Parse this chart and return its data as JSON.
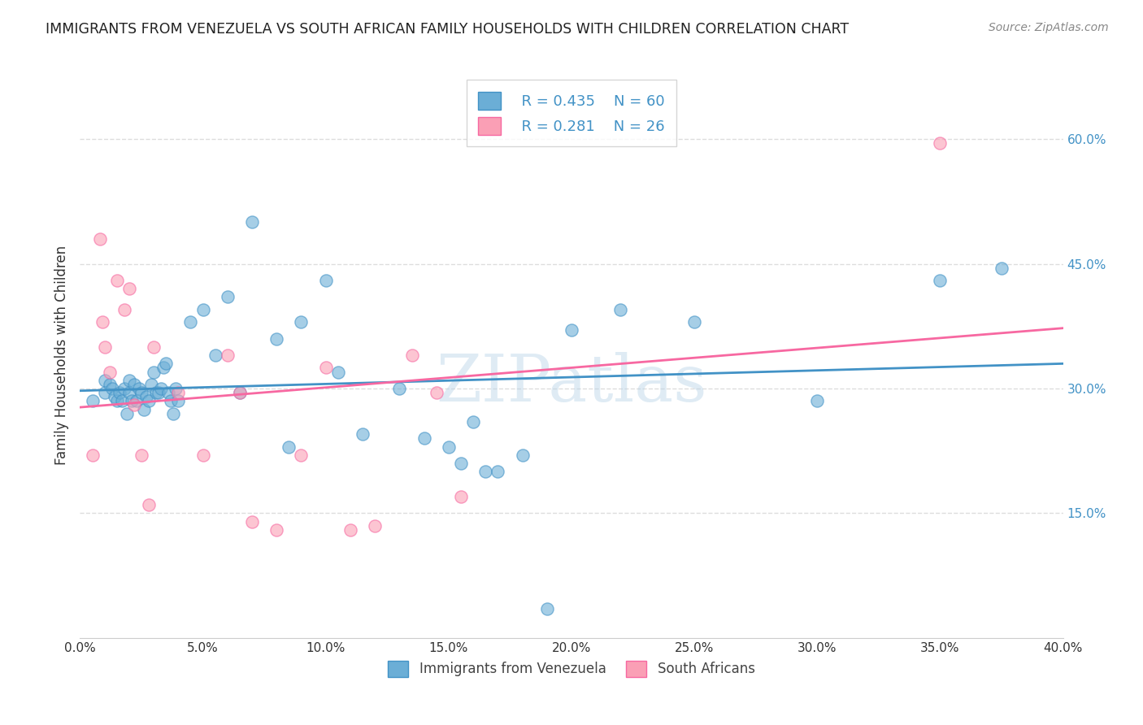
{
  "title": "IMMIGRANTS FROM VENEZUELA VS SOUTH AFRICAN FAMILY HOUSEHOLDS WITH CHILDREN CORRELATION CHART",
  "source": "Source: ZipAtlas.com",
  "xlabel": "",
  "ylabel": "Family Households with Children",
  "xlim": [
    0.0,
    0.4
  ],
  "ylim": [
    0.0,
    0.68
  ],
  "xticks": [
    0.0,
    0.05,
    0.1,
    0.15,
    0.2,
    0.25,
    0.3,
    0.35,
    0.4
  ],
  "yticks": [
    0.15,
    0.3,
    0.45,
    0.6
  ],
  "ytick_labels": [
    "15.0%",
    "30.0%",
    "45.0%",
    "60.0%"
  ],
  "xtick_labels": [
    "0.0%",
    "",
    "",
    "",
    "",
    "",
    "",
    "",
    "40.0%"
  ],
  "legend_R1": "R = 0.435",
  "legend_N1": "N = 60",
  "legend_R2": "R = 0.281",
  "legend_N2": "N = 26",
  "blue_color": "#6baed6",
  "pink_color": "#fa9fb5",
  "line_blue": "#4292c6",
  "line_pink": "#f768a1",
  "blue_scatter_x": [
    0.005,
    0.01,
    0.01,
    0.012,
    0.013,
    0.014,
    0.015,
    0.016,
    0.017,
    0.018,
    0.019,
    0.02,
    0.02,
    0.021,
    0.022,
    0.023,
    0.024,
    0.025,
    0.026,
    0.027,
    0.028,
    0.029,
    0.03,
    0.031,
    0.032,
    0.033,
    0.034,
    0.035,
    0.036,
    0.037,
    0.038,
    0.039,
    0.04,
    0.045,
    0.05,
    0.055,
    0.06,
    0.065,
    0.07,
    0.08,
    0.085,
    0.09,
    0.1,
    0.105,
    0.115,
    0.13,
    0.14,
    0.15,
    0.155,
    0.16,
    0.165,
    0.17,
    0.18,
    0.19,
    0.2,
    0.22,
    0.25,
    0.3,
    0.35,
    0.375
  ],
  "blue_scatter_y": [
    0.285,
    0.31,
    0.295,
    0.305,
    0.3,
    0.29,
    0.285,
    0.295,
    0.285,
    0.3,
    0.27,
    0.31,
    0.295,
    0.285,
    0.305,
    0.285,
    0.3,
    0.295,
    0.275,
    0.29,
    0.285,
    0.305,
    0.32,
    0.295,
    0.295,
    0.3,
    0.325,
    0.33,
    0.295,
    0.285,
    0.27,
    0.3,
    0.285,
    0.38,
    0.395,
    0.34,
    0.41,
    0.295,
    0.5,
    0.36,
    0.23,
    0.38,
    0.43,
    0.32,
    0.245,
    0.3,
    0.24,
    0.23,
    0.21,
    0.26,
    0.2,
    0.2,
    0.22,
    0.035,
    0.37,
    0.395,
    0.38,
    0.285,
    0.43,
    0.445
  ],
  "pink_scatter_x": [
    0.005,
    0.008,
    0.009,
    0.01,
    0.012,
    0.015,
    0.018,
    0.02,
    0.022,
    0.025,
    0.028,
    0.03,
    0.04,
    0.05,
    0.06,
    0.065,
    0.07,
    0.08,
    0.09,
    0.1,
    0.11,
    0.12,
    0.135,
    0.145,
    0.155,
    0.35
  ],
  "pink_scatter_y": [
    0.22,
    0.48,
    0.38,
    0.35,
    0.32,
    0.43,
    0.395,
    0.42,
    0.28,
    0.22,
    0.16,
    0.35,
    0.295,
    0.22,
    0.34,
    0.295,
    0.14,
    0.13,
    0.22,
    0.325,
    0.13,
    0.135,
    0.34,
    0.295,
    0.17,
    0.595
  ],
  "watermark": "ZIPatlas",
  "background_color": "#ffffff",
  "grid_color": "#dddddd"
}
